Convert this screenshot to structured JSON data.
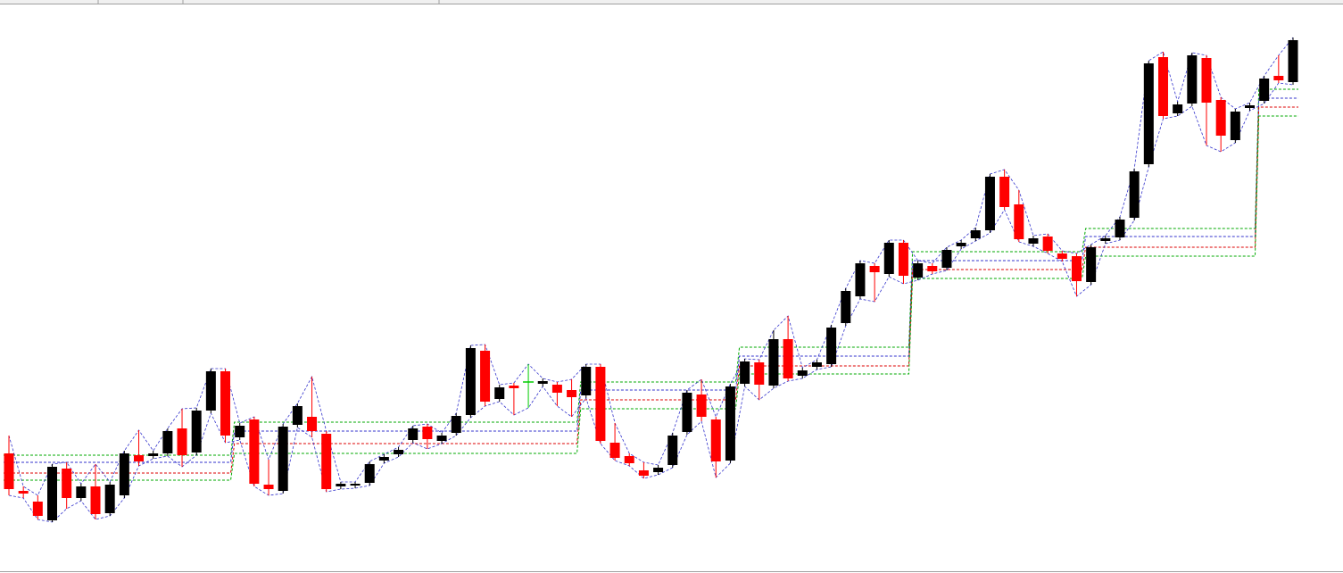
{
  "chart_data": {
    "type": "candlestick",
    "ylim": [
      0,
      640
    ],
    "up_color": "#000000",
    "down_color": "#ff0000",
    "doji_color": "#00cc00",
    "envelope_color": "#3333cc",
    "level_colors": [
      "#00aa00",
      "#3333cc",
      "#dd0000",
      "#00aa00"
    ],
    "ohlc": [
      [
        132,
        152,
        85,
        92
      ],
      [
        90,
        95,
        82,
        87
      ],
      [
        78,
        85,
        58,
        62
      ],
      [
        57,
        120,
        55,
        117
      ],
      [
        115,
        122,
        70,
        82
      ],
      [
        82,
        98,
        79,
        95
      ],
      [
        95,
        120,
        58,
        64
      ],
      [
        65,
        100,
        62,
        97
      ],
      [
        85,
        135,
        82,
        132
      ],
      [
        130,
        158,
        118,
        123
      ],
      [
        129,
        135,
        126,
        132
      ],
      [
        132,
        160,
        129,
        157
      ],
      [
        160,
        182,
        117,
        130
      ],
      [
        133,
        183,
        130,
        180
      ],
      [
        180,
        227,
        177,
        224
      ],
      [
        224,
        227,
        144,
        152
      ],
      [
        150,
        166,
        147,
        163
      ],
      [
        170,
        173,
        95,
        98
      ],
      [
        97,
        125,
        85,
        92
      ],
      [
        90,
        165,
        87,
        162
      ],
      [
        164,
        188,
        161,
        185
      ],
      [
        173,
        218,
        150,
        157
      ],
      [
        154,
        157,
        89,
        92
      ],
      [
        95,
        100,
        92,
        98
      ],
      [
        96,
        100,
        93,
        98
      ],
      [
        99,
        123,
        96,
        120
      ],
      [
        124,
        131,
        121,
        128
      ],
      [
        131,
        139,
        128,
        136
      ],
      [
        147,
        163,
        144,
        160
      ],
      [
        162,
        165,
        137,
        148
      ],
      [
        146,
        155,
        143,
        152
      ],
      [
        155,
        177,
        152,
        174
      ],
      [
        175,
        253,
        172,
        250
      ],
      [
        247,
        254,
        185,
        190
      ],
      [
        193,
        209,
        190,
        206
      ],
      [
        208,
        211,
        175,
        205
      ],
      [
        212,
        232,
        183,
        212
      ],
      [
        210,
        216,
        207,
        213
      ],
      [
        209,
        212,
        185,
        200
      ],
      [
        203,
        215,
        173,
        195
      ],
      [
        197,
        232,
        194,
        229
      ],
      [
        229,
        232,
        143,
        146
      ],
      [
        144,
        166,
        124,
        127
      ],
      [
        129,
        132,
        118,
        121
      ],
      [
        113,
        122,
        104,
        107
      ],
      [
        111,
        119,
        108,
        116
      ],
      [
        119,
        155,
        116,
        152
      ],
      [
        156,
        203,
        153,
        200
      ],
      [
        198,
        215,
        168,
        173
      ],
      [
        170,
        173,
        105,
        123
      ],
      [
        124,
        210,
        121,
        207
      ],
      [
        210,
        238,
        207,
        235
      ],
      [
        234,
        237,
        192,
        209
      ],
      [
        208,
        270,
        205,
        260
      ],
      [
        260,
        286,
        213,
        216
      ],
      [
        219,
        228,
        216,
        225
      ],
      [
        229,
        237,
        226,
        234
      ],
      [
        232,
        276,
        229,
        273
      ],
      [
        278,
        317,
        275,
        314
      ],
      [
        308,
        348,
        305,
        345
      ],
      [
        342,
        345,
        302,
        335
      ],
      [
        333,
        371,
        330,
        368
      ],
      [
        368,
        371,
        322,
        331
      ],
      [
        329,
        348,
        326,
        345
      ],
      [
        342,
        345,
        333,
        336
      ],
      [
        340,
        363,
        337,
        360
      ],
      [
        364,
        371,
        361,
        368
      ],
      [
        373,
        385,
        370,
        382
      ],
      [
        382,
        445,
        379,
        442
      ],
      [
        442,
        450,
        405,
        408
      ],
      [
        411,
        427,
        369,
        372
      ],
      [
        367,
        376,
        364,
        373
      ],
      [
        375,
        378,
        356,
        359
      ],
      [
        356,
        359,
        347,
        350
      ],
      [
        353,
        356,
        308,
        325
      ],
      [
        324,
        366,
        321,
        363
      ],
      [
        370,
        376,
        367,
        373
      ],
      [
        374,
        397,
        371,
        394
      ],
      [
        396,
        451,
        393,
        448
      ],
      [
        456,
        572,
        453,
        569
      ],
      [
        576,
        582,
        507,
        510
      ],
      [
        513,
        526,
        510,
        523
      ],
      [
        524,
        581,
        521,
        578
      ],
      [
        575,
        578,
        477,
        525
      ],
      [
        528,
        531,
        470,
        488
      ],
      [
        483,
        518,
        480,
        515
      ],
      [
        519,
        525,
        516,
        522
      ],
      [
        527,
        555,
        524,
        552
      ],
      [
        555,
        578,
        547,
        550
      ],
      [
        548,
        598,
        545,
        595
      ]
    ],
    "levels": [
      {
        "from": 0,
        "to": 15,
        "values": [
          130,
          122,
          110,
          102
        ]
      },
      {
        "from": 16,
        "to": 39,
        "values": [
          167,
          157,
          143,
          132
        ]
      },
      {
        "from": 40,
        "to": 50,
        "values": [
          212,
          203,
          192,
          182
        ]
      },
      {
        "from": 51,
        "to": 62,
        "values": [
          251,
          241,
          230,
          221
        ]
      },
      {
        "from": 63,
        "to": 74,
        "values": [
          358,
          348,
          338,
          328
        ]
      },
      {
        "from": 75,
        "to": 86,
        "values": [
          384,
          375,
          363,
          353
        ]
      },
      {
        "from": 87,
        "to": 89,
        "values": [
          540,
          530,
          520,
          510
        ]
      }
    ]
  }
}
